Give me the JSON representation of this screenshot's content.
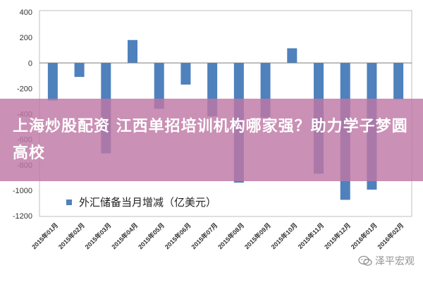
{
  "chart_data": {
    "type": "bar",
    "categories": [
      "2015年01月",
      "2015年02月",
      "2015年03月",
      "2015年04月",
      "2015年05月",
      "2015年06月",
      "2015年07月",
      "2015年08月",
      "2015年09月",
      "2015年10月",
      "2015年11月",
      "2015年12月",
      "2016年01月",
      "2016年02月"
    ],
    "series": [
      {
        "name": "外汇储备当月增减（亿美元）",
        "values": [
          -295,
          -110,
          -710,
          180,
          -360,
          -170,
          -420,
          -940,
          -430,
          115,
          -870,
          -1075,
          -995,
          -285
        ]
      }
    ],
    "ylim": [
      -1200,
      400
    ],
    "yticks": [
      400,
      200,
      0,
      -200,
      -400,
      -600,
      -800,
      -1000,
      -1200
    ],
    "legend_position": "lower-left",
    "grid": false,
    "bar_color": "#4f81bd"
  },
  "overlay": {
    "text": "上海炒股配资 江西单招培训机构哪家强？助力学子梦圆高校"
  },
  "watermark": {
    "text": "泽平宏观",
    "icon": "wechat-icon"
  }
}
